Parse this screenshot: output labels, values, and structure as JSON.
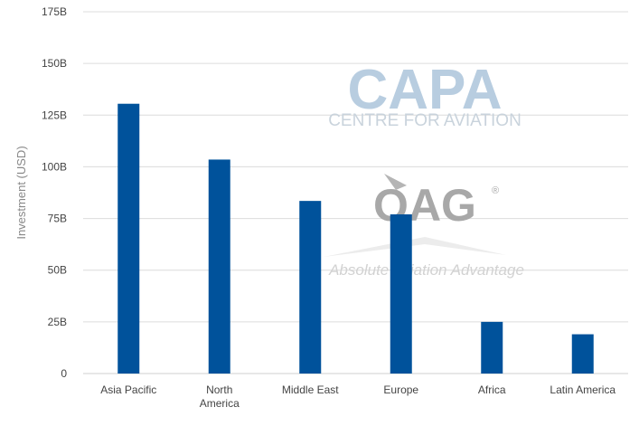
{
  "chart_data": {
    "type": "bar",
    "categories": [
      [
        "Asia Pacific"
      ],
      [
        "North",
        "America"
      ],
      [
        "Middle East"
      ],
      [
        "Europe"
      ],
      [
        "Africa"
      ],
      [
        "Latin America"
      ]
    ],
    "values": [
      130.5,
      103.5,
      83.5,
      77,
      25,
      19
    ],
    "ylabel": "Investment (USD)",
    "ylim": [
      0,
      175
    ],
    "yticks": [
      {
        "value": 0,
        "label": "0"
      },
      {
        "value": 25,
        "label": "25B"
      },
      {
        "value": 50,
        "label": "50B"
      },
      {
        "value": 75,
        "label": "75B"
      },
      {
        "value": 100,
        "label": "100B"
      },
      {
        "value": 125,
        "label": "125B"
      },
      {
        "value": 150,
        "label": "150B"
      },
      {
        "value": 175,
        "label": "175B"
      }
    ],
    "grid": true,
    "bar_color": "#00529b",
    "grid_color": "#dcdcdc"
  },
  "watermarks": {
    "capa_logo": "CAPA",
    "capa_subtitle": "CENTRE FOR AVIATION",
    "oag_logo": "OAG",
    "oag_registered": "®",
    "oag_tagline": "Absolute Aviation Advantage"
  }
}
